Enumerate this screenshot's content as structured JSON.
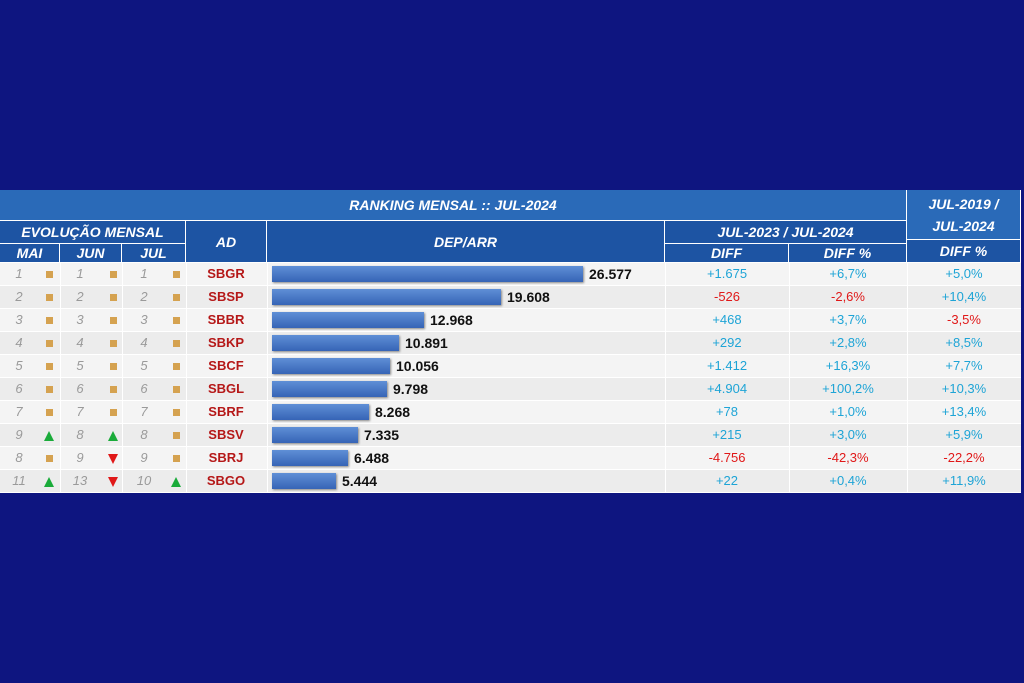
{
  "header": {
    "title": "RANKING MENSAL :: JUL-2024",
    "evolucao": "EVOLUÇÃO MENSAL",
    "months": [
      "MAI",
      "JUN",
      "JUL"
    ],
    "ad": "AD",
    "dep_arr": "DEP/ARR",
    "period_a": "JUL-2023 / JUL-2024",
    "diff": "DIFF",
    "diff_pct": "DIFF %",
    "period_b_line1": "JUL-2019 /",
    "period_b_line2": "JUL-2024",
    "diff_pct_b": "DIFF %"
  },
  "colors": {
    "bg": "#0e1580",
    "header": "#2a6ab8",
    "bar": "#4a78c8",
    "positive": "#1ea4d6",
    "negative": "#e01818",
    "ad": "#b51818"
  },
  "chart_data": {
    "type": "bar",
    "title": "RANKING MENSAL :: JUL-2024",
    "categories": [
      "SBGR",
      "SBSP",
      "SBBR",
      "SBKP",
      "SBCF",
      "SBGL",
      "SBRF",
      "SBSV",
      "SBRJ",
      "SBGO"
    ],
    "series": [
      {
        "name": "DEP/ARR",
        "values": [
          26577,
          19608,
          12968,
          10891,
          10056,
          9798,
          8268,
          7335,
          6488,
          5444
        ]
      }
    ],
    "value_labels": [
      "26.577",
      "19.608",
      "12.968",
      "10.891",
      "10.056",
      "9.798",
      "8.268",
      "7.335",
      "6.488",
      "5.444"
    ],
    "xlim": [
      0,
      26577
    ]
  },
  "rows": [
    {
      "mai": "1",
      "mai_ind": "same",
      "jun": "1",
      "jun_ind": "same",
      "jul": "1",
      "jul_ind": "same",
      "diff": "+1.675",
      "diff_pct": "+6,7%",
      "diff_pct_b": "+5,0%"
    },
    {
      "mai": "2",
      "mai_ind": "same",
      "jun": "2",
      "jun_ind": "same",
      "jul": "2",
      "jul_ind": "same",
      "diff": "-526",
      "diff_pct": "-2,6%",
      "diff_pct_b": "+10,4%"
    },
    {
      "mai": "3",
      "mai_ind": "same",
      "jun": "3",
      "jun_ind": "same",
      "jul": "3",
      "jul_ind": "same",
      "diff": "+468",
      "diff_pct": "+3,7%",
      "diff_pct_b": "-3,5%"
    },
    {
      "mai": "4",
      "mai_ind": "same",
      "jun": "4",
      "jun_ind": "same",
      "jul": "4",
      "jul_ind": "same",
      "diff": "+292",
      "diff_pct": "+2,8%",
      "diff_pct_b": "+8,5%"
    },
    {
      "mai": "5",
      "mai_ind": "same",
      "jun": "5",
      "jun_ind": "same",
      "jul": "5",
      "jul_ind": "same",
      "diff": "+1.412",
      "diff_pct": "+16,3%",
      "diff_pct_b": "+7,7%"
    },
    {
      "mai": "6",
      "mai_ind": "same",
      "jun": "6",
      "jun_ind": "same",
      "jul": "6",
      "jul_ind": "same",
      "diff": "+4.904",
      "diff_pct": "+100,2%",
      "diff_pct_b": "+10,3%"
    },
    {
      "mai": "7",
      "mai_ind": "same",
      "jun": "7",
      "jun_ind": "same",
      "jul": "7",
      "jul_ind": "same",
      "diff": "+78",
      "diff_pct": "+1,0%",
      "diff_pct_b": "+13,4%"
    },
    {
      "mai": "9",
      "mai_ind": "up",
      "jun": "8",
      "jun_ind": "up",
      "jul": "8",
      "jul_ind": "same",
      "diff": "+215",
      "diff_pct": "+3,0%",
      "diff_pct_b": "+5,9%"
    },
    {
      "mai": "8",
      "mai_ind": "same",
      "jun": "9",
      "jun_ind": "down",
      "jul": "9",
      "jul_ind": "same",
      "diff": "-4.756",
      "diff_pct": "-42,3%",
      "diff_pct_b": "-22,2%"
    },
    {
      "mai": "11",
      "mai_ind": "up",
      "jun": "13",
      "jun_ind": "down",
      "jul": "10",
      "jul_ind": "up",
      "diff": "+22",
      "diff_pct": "+0,4%",
      "diff_pct_b": "+11,9%"
    }
  ]
}
